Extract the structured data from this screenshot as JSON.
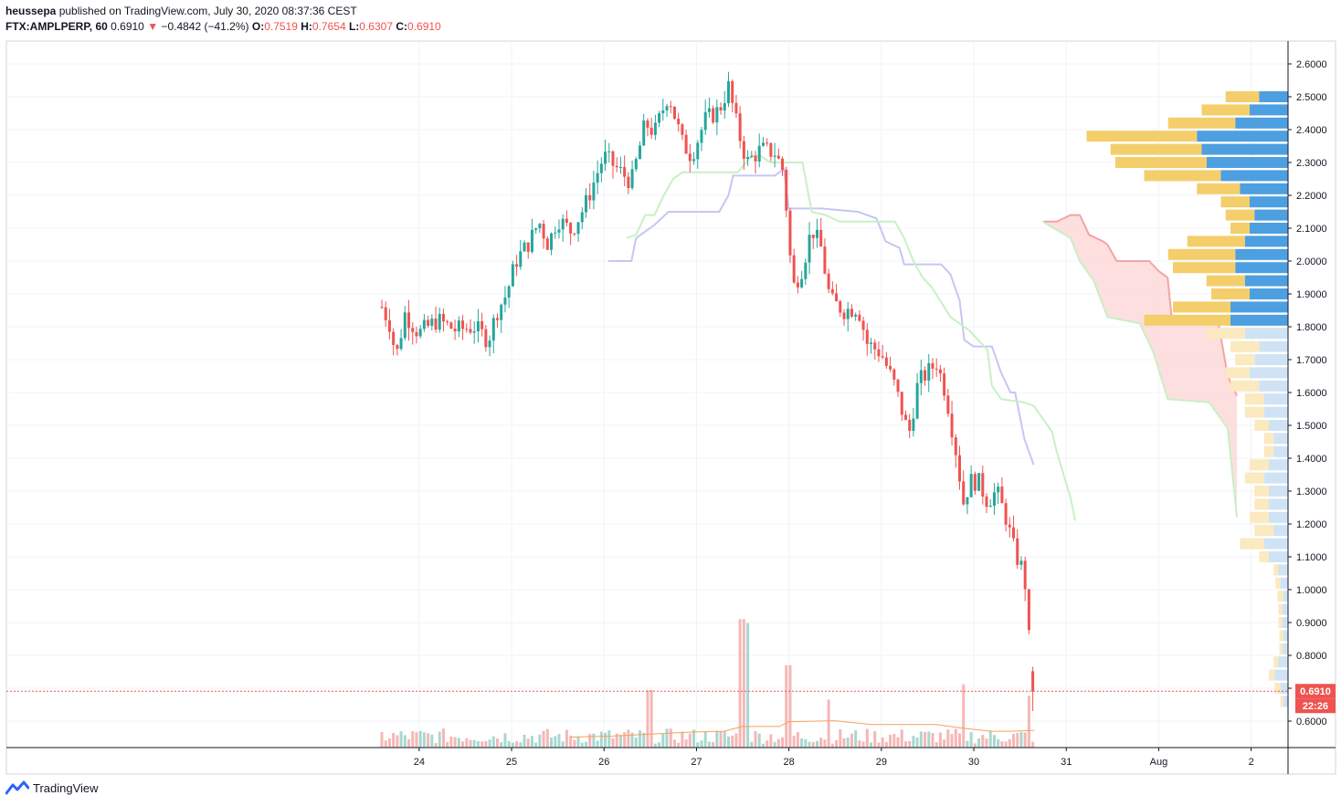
{
  "header": {
    "publisher": "heussepa",
    "published_text": "published on TradingView.com, July 30, 2020 08:37:36 CEST",
    "symbol": "FTX:AMPLPERP, 60",
    "last": "0.6910",
    "change_arrow": "▼",
    "change": "−0.4842 (−41.2%)",
    "o_label": "O:",
    "o_value": "0.7519",
    "h_label": "H:",
    "h_value": "0.7654",
    "l_label": "L:",
    "l_value": "0.6307",
    "c_label": "C:",
    "c_value": "0.6910"
  },
  "footer": {
    "brand": "TradingView",
    "logo_icon": "tradingview-logo-icon"
  },
  "price_tag": {
    "value": "0.6910",
    "countdown": "22:26"
  },
  "colors": {
    "up": "#26a69a",
    "down": "#ef5350",
    "up_volume": "#a8d8cf",
    "down_volume": "#f5b7b6",
    "vwap_line": "#f7a05b",
    "kijun_line": "#c6c6f3",
    "senkou_line": "#c8f0c4",
    "cloud": "#fcd7d7",
    "cloud_edge": "#f5a3a3",
    "profile_up": "#4d9fe0",
    "profile_down": "#f4ce6b",
    "profile_up_light": "#cfe3f5",
    "profile_down_light": "#fbe9bf"
  },
  "chart_data": {
    "type": "candlestick",
    "x_ticks": [
      "24",
      "25",
      "26",
      "27",
      "28",
      "29",
      "30",
      "31",
      "Aug",
      "2"
    ],
    "y_ticks": [
      "2.6000",
      "2.5000",
      "2.4000",
      "2.3000",
      "2.2000",
      "2.1000",
      "2.0000",
      "1.9000",
      "1.8000",
      "1.7000",
      "1.6000",
      "1.5000",
      "1.4000",
      "1.3000",
      "1.2000",
      "1.1000",
      "1.0000",
      "0.9000",
      "0.8000",
      "0.7000",
      "0.6000"
    ],
    "ylim": [
      0.52,
      2.66
    ],
    "x_range_days": [
      23.3,
      33.1
    ],
    "grid": true,
    "price_path": [
      [
        23.3,
        1.86
      ],
      [
        23.4,
        1.8
      ],
      [
        23.45,
        1.7
      ],
      [
        23.55,
        1.84
      ],
      [
        23.7,
        1.78
      ],
      [
        23.9,
        1.82
      ],
      [
        24.1,
        1.79
      ],
      [
        24.3,
        1.8
      ],
      [
        24.45,
        1.76
      ],
      [
        24.55,
        1.85
      ],
      [
        24.65,
        1.9
      ],
      [
        24.75,
        2.0
      ],
      [
        24.9,
        2.06
      ],
      [
        25.0,
        2.12
      ],
      [
        25.1,
        2.05
      ],
      [
        25.2,
        2.13
      ],
      [
        25.35,
        2.09
      ],
      [
        25.5,
        2.17
      ],
      [
        25.7,
        2.32
      ],
      [
        25.85,
        2.28
      ],
      [
        26.0,
        2.24
      ],
      [
        26.15,
        2.42
      ],
      [
        26.25,
        2.39
      ],
      [
        26.4,
        2.51
      ],
      [
        26.55,
        2.36
      ],
      [
        26.65,
        2.32
      ],
      [
        26.8,
        2.43
      ],
      [
        26.95,
        2.46
      ],
      [
        27.05,
        2.53
      ],
      [
        27.15,
        2.4
      ],
      [
        27.25,
        2.3
      ],
      [
        27.4,
        2.34
      ],
      [
        27.55,
        2.33
      ],
      [
        27.65,
        2.27
      ],
      [
        27.7,
        2.06
      ],
      [
        27.75,
        1.92
      ],
      [
        27.85,
        1.98
      ],
      [
        27.95,
        2.1
      ],
      [
        28.05,
        2.04
      ],
      [
        28.15,
        1.88
      ],
      [
        28.3,
        1.85
      ],
      [
        28.45,
        1.86
      ],
      [
        28.55,
        1.75
      ],
      [
        28.7,
        1.72
      ],
      [
        28.85,
        1.62
      ],
      [
        28.95,
        1.52
      ],
      [
        29.0,
        1.47
      ],
      [
        29.1,
        1.63
      ],
      [
        29.3,
        1.69
      ],
      [
        29.4,
        1.6
      ],
      [
        29.5,
        1.44
      ],
      [
        29.6,
        1.25
      ],
      [
        29.65,
        1.33
      ],
      [
        29.75,
        1.33
      ],
      [
        29.85,
        1.27
      ],
      [
        29.95,
        1.3
      ],
      [
        30.05,
        1.22
      ],
      [
        30.15,
        1.11
      ],
      [
        30.25,
        1.05
      ],
      [
        30.3,
        0.85
      ],
      [
        30.36,
        0.691
      ]
    ],
    "volume_ma": [
      [
        25.35,
        0.055
      ],
      [
        25.8,
        0.06
      ],
      [
        26.2,
        0.07
      ],
      [
        26.6,
        0.08
      ],
      [
        27.0,
        0.085
      ],
      [
        27.2,
        0.11
      ],
      [
        27.6,
        0.11
      ],
      [
        27.7,
        0.135
      ],
      [
        28.2,
        0.14
      ],
      [
        28.6,
        0.12
      ],
      [
        29.0,
        0.12
      ],
      [
        29.3,
        0.12
      ],
      [
        29.6,
        0.1
      ],
      [
        29.9,
        0.085
      ],
      [
        30.1,
        0.085
      ],
      [
        30.36,
        0.09
      ]
    ],
    "kijun": [
      [
        25.75,
        2.0
      ],
      [
        26.0,
        2.0
      ],
      [
        26.05,
        2.07
      ],
      [
        26.25,
        2.11
      ],
      [
        26.4,
        2.15
      ],
      [
        26.95,
        2.15
      ],
      [
        27.05,
        2.2
      ],
      [
        27.1,
        2.26
      ],
      [
        27.55,
        2.26
      ],
      [
        27.65,
        2.28
      ],
      [
        27.7,
        2.16
      ],
      [
        28.05,
        2.16
      ],
      [
        28.45,
        2.15
      ],
      [
        28.65,
        2.13
      ],
      [
        28.75,
        2.06
      ],
      [
        28.9,
        2.04
      ],
      [
        28.95,
        1.99
      ],
      [
        29.35,
        1.99
      ],
      [
        29.45,
        1.96
      ],
      [
        29.55,
        1.88
      ],
      [
        29.6,
        1.76
      ],
      [
        29.7,
        1.74
      ],
      [
        29.9,
        1.74
      ],
      [
        30.0,
        1.66
      ],
      [
        30.1,
        1.6
      ],
      [
        30.15,
        1.6
      ],
      [
        30.25,
        1.46
      ],
      [
        30.35,
        1.38
      ]
    ],
    "senkou_a": [
      [
        30.45,
        2.12
      ],
      [
        30.6,
        2.12
      ],
      [
        30.75,
        2.14
      ],
      [
        30.85,
        2.14
      ],
      [
        30.95,
        2.08
      ],
      [
        31.1,
        2.06
      ],
      [
        31.15,
        2.05
      ],
      [
        31.25,
        2.0
      ],
      [
        31.6,
        2.0
      ],
      [
        31.7,
        1.97
      ],
      [
        31.8,
        1.95
      ],
      [
        31.85,
        1.81
      ],
      [
        32.35,
        1.81
      ],
      [
        32.45,
        1.65
      ],
      [
        32.55,
        1.59
      ]
    ],
    "senkou_b": [
      [
        25.95,
        2.07
      ],
      [
        26.05,
        2.08
      ],
      [
        26.15,
        2.14
      ],
      [
        26.25,
        2.14
      ],
      [
        26.35,
        2.2
      ],
      [
        26.45,
        2.25
      ],
      [
        26.55,
        2.27
      ],
      [
        26.95,
        2.27
      ],
      [
        27.15,
        2.27
      ],
      [
        27.3,
        2.32
      ],
      [
        27.4,
        2.32
      ],
      [
        27.5,
        2.3
      ],
      [
        27.85,
        2.3
      ],
      [
        27.95,
        2.15
      ],
      [
        28.1,
        2.14
      ],
      [
        28.25,
        2.12
      ],
      [
        28.45,
        2.12
      ],
      [
        28.6,
        2.12
      ],
      [
        28.85,
        2.12
      ],
      [
        28.95,
        2.07
      ],
      [
        29.05,
        2.0
      ],
      [
        29.15,
        1.95
      ],
      [
        29.25,
        1.92
      ],
      [
        29.45,
        1.83
      ],
      [
        29.65,
        1.79
      ],
      [
        29.75,
        1.76
      ],
      [
        29.85,
        1.73
      ],
      [
        29.9,
        1.62
      ],
      [
        30.0,
        1.58
      ],
      [
        30.25,
        1.57
      ],
      [
        30.35,
        1.56
      ],
      [
        30.45,
        1.52
      ],
      [
        30.55,
        1.48
      ],
      [
        30.6,
        1.42
      ],
      [
        30.75,
        1.28
      ],
      [
        30.8,
        1.21
      ]
    ],
    "cloud_region": [
      30.45,
      32.55
    ],
    "volume_profile": [
      {
        "price": 2.5,
        "up": 30,
        "down": 35
      },
      {
        "price": 2.46,
        "up": 40,
        "down": 50
      },
      {
        "price": 2.42,
        "up": 55,
        "down": 70
      },
      {
        "price": 2.38,
        "up": 95,
        "down": 115
      },
      {
        "price": 2.34,
        "up": 90,
        "down": 95
      },
      {
        "price": 2.3,
        "up": 85,
        "down": 95
      },
      {
        "price": 2.26,
        "up": 70,
        "down": 80
      },
      {
        "price": 2.22,
        "up": 50,
        "down": 45
      },
      {
        "price": 2.18,
        "up": 40,
        "down": 30
      },
      {
        "price": 2.14,
        "up": 35,
        "down": 30
      },
      {
        "price": 2.1,
        "up": 40,
        "down": 20
      },
      {
        "price": 2.06,
        "up": 45,
        "down": 60
      },
      {
        "price": 2.02,
        "up": 55,
        "down": 70
      },
      {
        "price": 1.98,
        "up": 55,
        "down": 65
      },
      {
        "price": 1.94,
        "up": 45,
        "down": 40
      },
      {
        "price": 1.9,
        "up": 40,
        "down": 40
      },
      {
        "price": 1.86,
        "up": 60,
        "down": 60
      },
      {
        "price": 1.82,
        "up": 60,
        "down": 90
      },
      {
        "price": 1.78,
        "up": 45,
        "down": 40
      },
      {
        "price": 1.74,
        "up": 30,
        "down": 30
      },
      {
        "price": 1.7,
        "up": 35,
        "down": 20
      },
      {
        "price": 1.66,
        "up": 40,
        "down": 25
      },
      {
        "price": 1.62,
        "up": 30,
        "down": 30
      },
      {
        "price": 1.58,
        "up": 25,
        "down": 20
      },
      {
        "price": 1.54,
        "up": 25,
        "down": 20
      },
      {
        "price": 1.5,
        "up": 20,
        "down": 15
      },
      {
        "price": 1.46,
        "up": 15,
        "down": 10
      },
      {
        "price": 1.42,
        "up": 15,
        "down": 10
      },
      {
        "price": 1.38,
        "up": 20,
        "down": 20
      },
      {
        "price": 1.34,
        "up": 25,
        "down": 20
      },
      {
        "price": 1.3,
        "up": 20,
        "down": 15
      },
      {
        "price": 1.26,
        "up": 20,
        "down": 15
      },
      {
        "price": 1.22,
        "up": 20,
        "down": 20
      },
      {
        "price": 1.18,
        "up": 15,
        "down": 20
      },
      {
        "price": 1.14,
        "up": 25,
        "down": 25
      },
      {
        "price": 1.1,
        "up": 20,
        "down": 10
      },
      {
        "price": 1.06,
        "up": 10,
        "down": 5
      },
      {
        "price": 1.02,
        "up": 8,
        "down": 5
      },
      {
        "price": 0.98,
        "up": 5,
        "down": 6
      },
      {
        "price": 0.94,
        "up": 6,
        "down": 4
      },
      {
        "price": 0.9,
        "up": 6,
        "down": 4
      },
      {
        "price": 0.86,
        "up": 5,
        "down": 4
      },
      {
        "price": 0.82,
        "up": 6,
        "down": 3
      },
      {
        "price": 0.78,
        "up": 10,
        "down": 5
      },
      {
        "price": 0.74,
        "up": 14,
        "down": 6
      },
      {
        "price": 0.7,
        "up": 8,
        "down": 6
      },
      {
        "price": 0.66,
        "up": 5,
        "down": 3
      }
    ],
    "volume_spikes": [
      [
        26.2,
        0.3
      ],
      [
        27.2,
        0.67
      ],
      [
        27.27,
        0.65
      ],
      [
        27.7,
        0.43
      ],
      [
        28.15,
        0.25
      ],
      [
        29.6,
        0.33
      ],
      [
        30.3,
        0.27
      ]
    ],
    "last_price": 0.691
  }
}
